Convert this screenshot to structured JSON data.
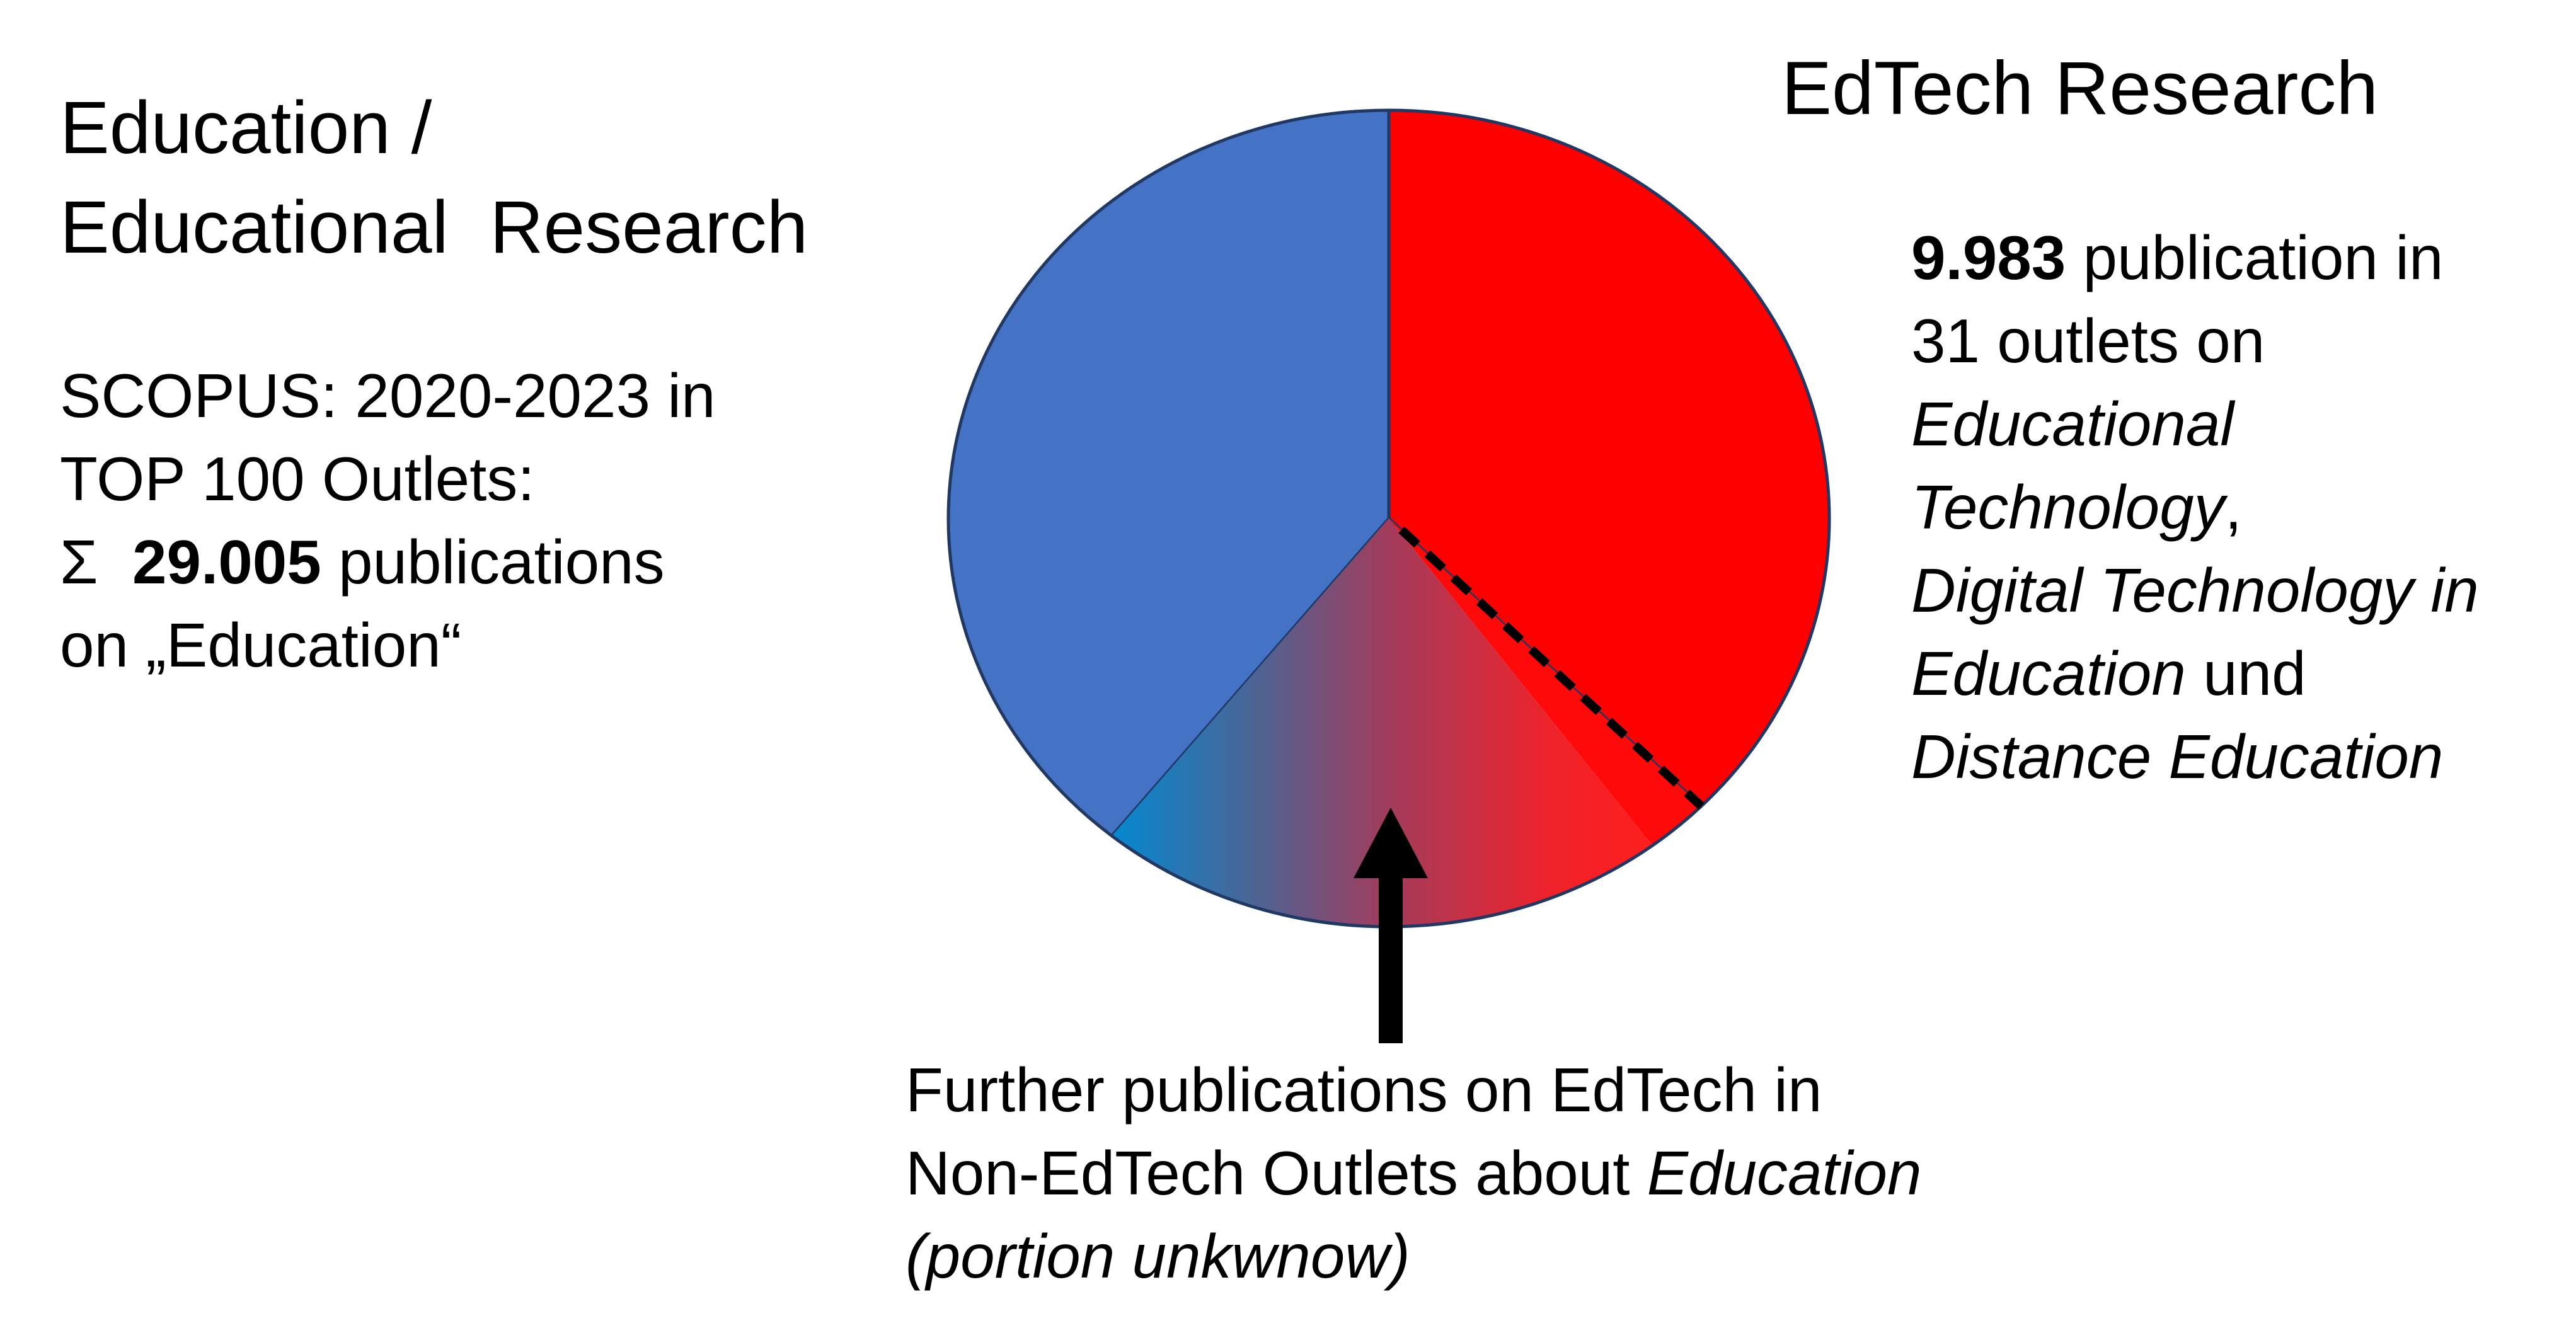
{
  "left": {
    "title_line1": "Education /",
    "title_line2": "Educational  Research",
    "line1": "SCOPUS: 2020-2023 in",
    "line2": "TOP 100 Outlets:",
    "line3_prefix": "Σ  ",
    "line3_bold": "29.005",
    "line3_rest": " publications",
    "line4": "on „Education“"
  },
  "right": {
    "title": "EdTech Research",
    "line1_bold": "9.983",
    "line1_rest": " publication in",
    "line2": "31 outlets on",
    "line3_italic": "Educational",
    "line4_italic": "Technology",
    "line4_rest": ",",
    "line5_italic": "Digital Technology in",
    "line6_italic": "Education",
    "line6_rest": " und",
    "line7_italic": "Distance Education"
  },
  "bottom": {
    "line1": "Further publications on EdTech in",
    "line2_plain": "Non-EdTech Outlets about ",
    "line2_italic": "Education",
    "line3_italic": "(portion unkwnow)"
  },
  "chart_data": {
    "type": "pie",
    "total_publications": 29005,
    "edtech_publications": 9983,
    "slices": [
      {
        "segment": "Education / Educational Research",
        "color": "#4472c4"
      },
      {
        "segment": "EdTech Research",
        "value": 9983,
        "color": "#ff0000"
      },
      {
        "segment": "Further publications on EdTech in Non-EdTech Outlets",
        "value_known": false,
        "color_gradient": [
          "#0588cf",
          "#ff1e1e"
        ]
      }
    ],
    "dashed_boundary": true,
    "arrow_points_to": "Further publications on EdTech in Non-EdTech Outlets"
  }
}
